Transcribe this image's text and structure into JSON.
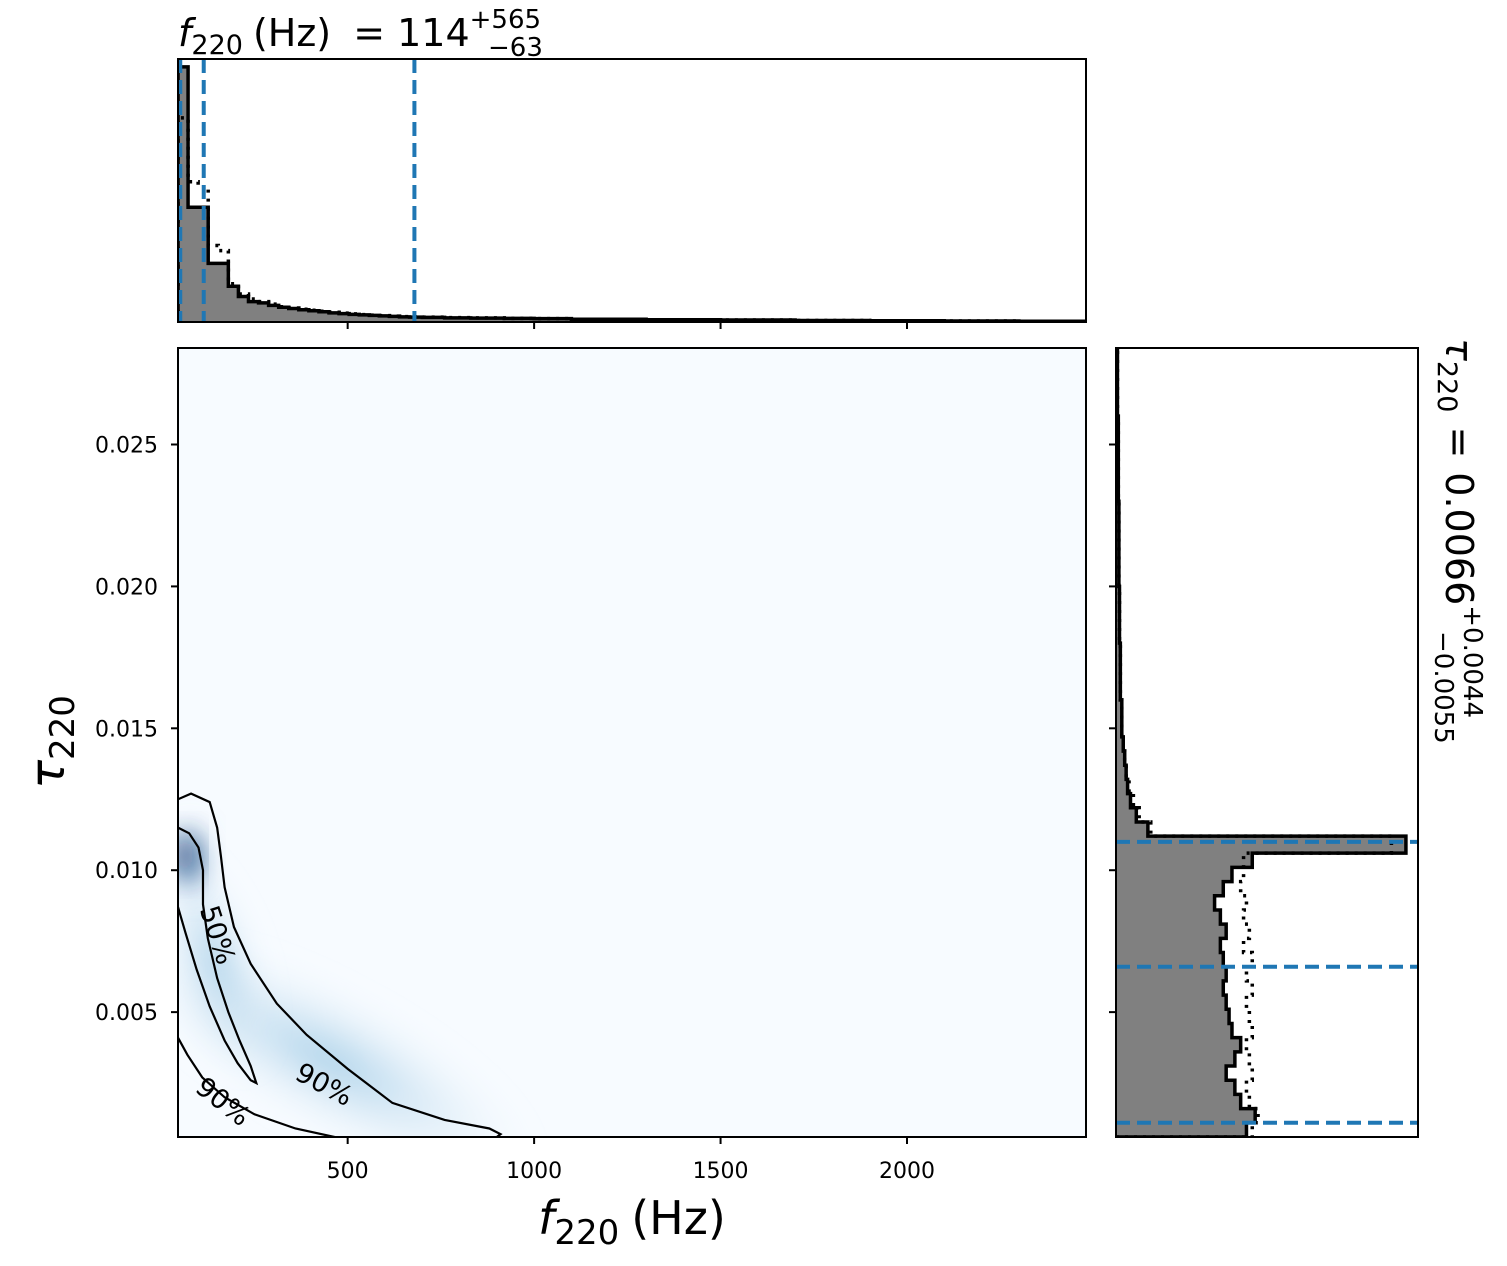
{
  "chart_data": {
    "type": "corner",
    "x_param": {
      "symbol": "f",
      "subscript": "220",
      "unit": "(Hz)",
      "median": "114",
      "plus": "+565",
      "minus": "−63",
      "range": [
        45,
        2480
      ],
      "ticks": [
        500,
        1000,
        1500,
        2000
      ],
      "tick_labels": [
        "500",
        "1000",
        "1500",
        "2000"
      ],
      "quantiles": [
        51,
        114,
        679
      ]
    },
    "y_param": {
      "symbol": "τ",
      "subscript": "220",
      "equals": "=",
      "median": "0.0066",
      "plus": "+0.0044",
      "minus": "−0.0055",
      "range": [
        0.0006,
        0.0284
      ],
      "ticks": [
        0.005,
        0.01,
        0.015,
        0.02,
        0.025
      ],
      "tick_labels": [
        "0.005",
        "0.010",
        "0.015",
        "0.020",
        "0.025"
      ],
      "quantiles": [
        0.0011,
        0.0066,
        0.011
      ]
    },
    "x_marginal": {
      "bins": [
        45,
        72,
        99,
        126,
        153,
        180,
        207,
        234,
        261,
        288,
        315,
        342,
        369,
        396,
        423,
        450,
        477,
        504,
        531,
        558,
        585,
        612,
        639,
        666,
        700,
        760,
        830,
        920,
        1000,
        1100,
        1300,
        1500,
        1700,
        1900,
        2100,
        2300,
        2480
      ],
      "solid": [
        1.0,
        0.45,
        0.45,
        0.23,
        0.23,
        0.14,
        0.1,
        0.08,
        0.075,
        0.065,
        0.058,
        0.053,
        0.048,
        0.044,
        0.04,
        0.036,
        0.033,
        0.03,
        0.028,
        0.026,
        0.024,
        0.022,
        0.02,
        0.019,
        0.018,
        0.016,
        0.015,
        0.014,
        0.013,
        0.011,
        0.009,
        0.008,
        0.006,
        0.005,
        0.004,
        0.003
      ],
      "dotted": [
        0.8,
        0.55,
        0.53,
        0.3,
        0.28,
        0.15,
        0.11,
        0.09,
        0.08,
        0.07,
        0.06,
        0.055,
        0.05,
        0.046,
        0.042,
        0.038,
        0.035,
        0.032,
        0.029,
        0.027,
        0.025,
        0.023,
        0.021,
        0.02,
        0.019,
        0.017,
        0.016,
        0.014,
        0.013,
        0.011,
        0.009,
        0.008,
        0.006,
        0.005,
        0.004,
        0.003
      ]
    },
    "y_marginal": {
      "bins": [
        0.0006,
        0.0011,
        0.0016,
        0.0021,
        0.0026,
        0.0031,
        0.0036,
        0.0041,
        0.0046,
        0.0051,
        0.0056,
        0.0061,
        0.0066,
        0.0071,
        0.0076,
        0.0081,
        0.0086,
        0.0091,
        0.0096,
        0.0101,
        0.0106,
        0.0112,
        0.0117,
        0.0122,
        0.0127,
        0.0132,
        0.0137,
        0.0142,
        0.0147,
        0.016,
        0.018,
        0.02,
        0.023,
        0.026,
        0.0284
      ],
      "solid": [
        0.45,
        0.48,
        0.43,
        0.41,
        0.38,
        0.41,
        0.43,
        0.4,
        0.39,
        0.38,
        0.37,
        0.38,
        0.37,
        0.36,
        0.38,
        0.36,
        0.34,
        0.37,
        0.4,
        0.47,
        1.0,
        0.11,
        0.07,
        0.05,
        0.04,
        0.035,
        0.03,
        0.025,
        0.02,
        0.015,
        0.012,
        0.01,
        0.008,
        0.005
      ],
      "dotted": [
        0.47,
        0.49,
        0.46,
        0.45,
        0.47,
        0.46,
        0.45,
        0.47,
        0.46,
        0.45,
        0.47,
        0.45,
        0.47,
        0.44,
        0.46,
        0.44,
        0.45,
        0.43,
        0.44,
        0.44,
        0.95,
        0.12,
        0.08,
        0.06,
        0.045,
        0.035,
        0.03,
        0.025,
        0.02,
        0.015,
        0.012,
        0.01,
        0.008,
        0.005
      ]
    },
    "contours": [
      {
        "label": "50%",
        "points": [
          [
            45,
            0.0115
          ],
          [
            75,
            0.0113
          ],
          [
            100,
            0.0108
          ],
          [
            112,
            0.01
          ],
          [
            112,
            0.0088
          ],
          [
            125,
            0.0076
          ],
          [
            150,
            0.0062
          ],
          [
            180,
            0.005
          ],
          [
            210,
            0.004
          ],
          [
            240,
            0.0031
          ],
          [
            255,
            0.0025
          ],
          [
            240,
            0.0026
          ],
          [
            205,
            0.0032
          ],
          [
            170,
            0.004
          ],
          [
            130,
            0.0052
          ],
          [
            95,
            0.0065
          ],
          [
            65,
            0.0078
          ],
          [
            45,
            0.0087
          ]
        ]
      },
      {
        "label": "90%",
        "points": [
          [
            45,
            0.0125
          ],
          [
            80,
            0.0127
          ],
          [
            130,
            0.0124
          ],
          [
            150,
            0.0115
          ],
          [
            160,
            0.0105
          ],
          [
            170,
            0.0094
          ],
          [
            195,
            0.008
          ],
          [
            240,
            0.0067
          ],
          [
            310,
            0.0053
          ],
          [
            390,
            0.0042
          ],
          [
            500,
            0.003
          ],
          [
            620,
            0.0018
          ],
          [
            760,
            0.0012
          ],
          [
            880,
            0.0009
          ],
          [
            910,
            0.0007
          ],
          [
            880,
            0.0004
          ],
          [
            700,
            0.0004
          ],
          [
            500,
            0.0005
          ],
          [
            360,
            0.0009
          ],
          [
            250,
            0.0014
          ],
          [
            170,
            0.002
          ],
          [
            110,
            0.0027
          ],
          [
            70,
            0.0035
          ],
          [
            45,
            0.0041
          ]
        ]
      }
    ],
    "contour_labels": [
      {
        "text": "50%",
        "x": 147,
        "y": 0.0077,
        "angle": 72
      },
      {
        "text": "90%",
        "x": 435,
        "y": 0.0024,
        "angle": 28
      },
      {
        "text": "90%",
        "x": 163,
        "y": 0.0018,
        "angle": 38
      }
    ],
    "density_peak": {
      "x": 65,
      "y": 0.0104
    },
    "colors": {
      "cmap_low": "#f7fbff",
      "cmap_high": "#08306b",
      "quantile_line": "#1f77b4",
      "hist_fill": "#808080",
      "hist_line": "#000000"
    }
  }
}
